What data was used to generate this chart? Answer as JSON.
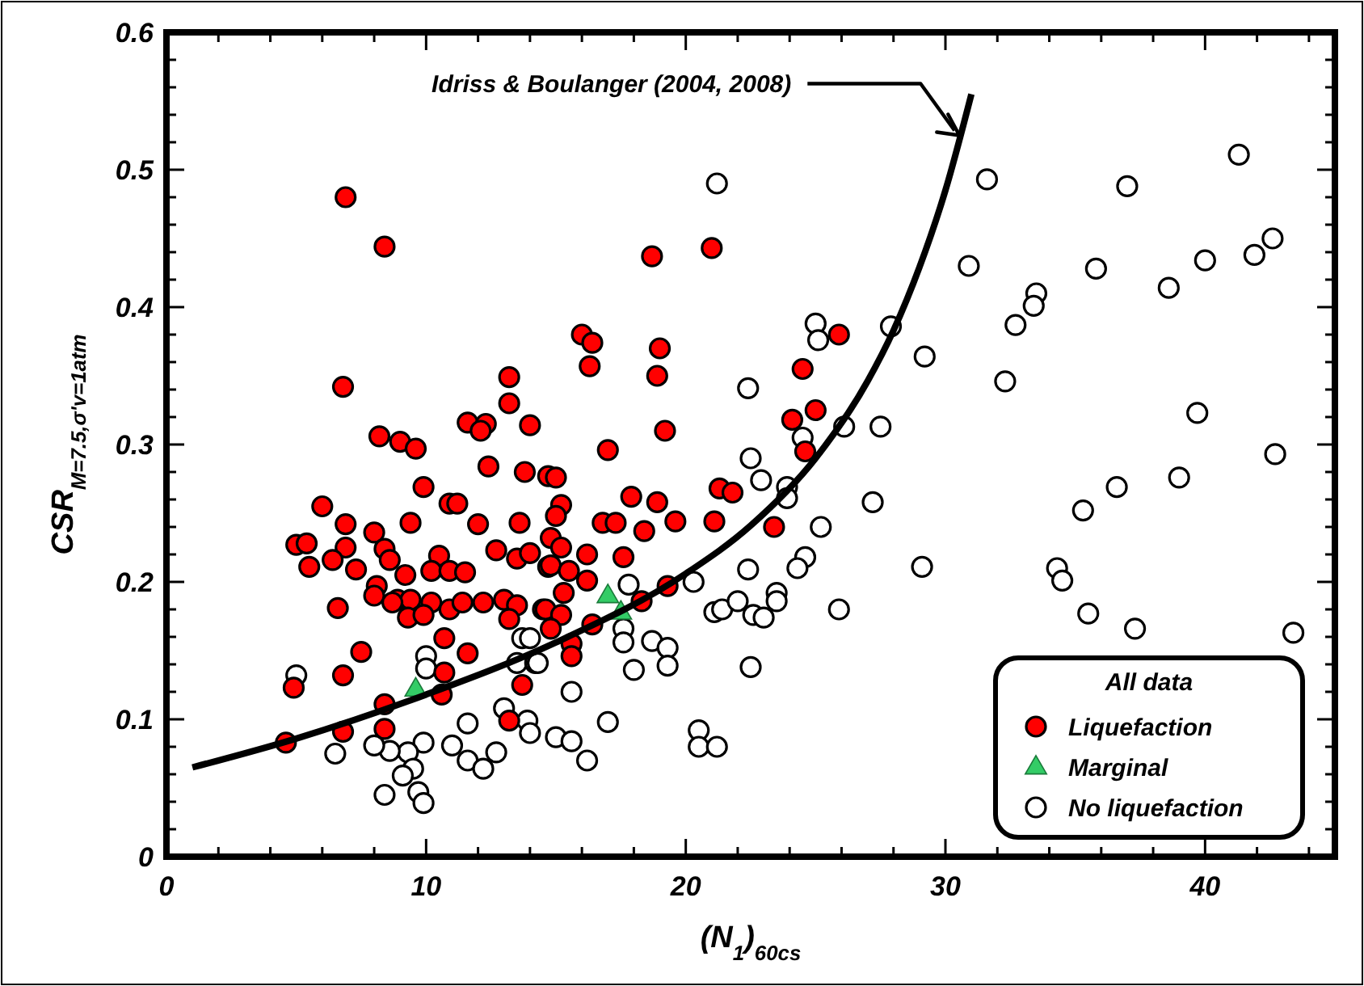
{
  "chart_data": {
    "type": "scatter",
    "xlabel": "(N$_{1}$)$_{60cs}$",
    "ylabel": "CSR$_{M=7.5,σ'v=1atm}$",
    "xlim": [
      0,
      45
    ],
    "ylim": [
      0,
      0.6
    ],
    "xticks": [
      0,
      {
        "value": 2,
        "label": null
      },
      {
        "value": 4,
        "label": null
      },
      {
        "value": 6,
        "label": null
      },
      {
        "value": 8,
        "label": null
      },
      10,
      {
        "value": 12,
        "label": null
      },
      {
        "value": 14,
        "label": null
      },
      {
        "value": 16,
        "label": null
      },
      {
        "value": 18,
        "label": null
      },
      20,
      {
        "value": 22,
        "label": null
      },
      {
        "value": 24,
        "label": null
      },
      {
        "value": 26,
        "label": null
      },
      {
        "value": 28,
        "label": null
      },
      30,
      {
        "value": 32,
        "label": null
      },
      {
        "value": 34,
        "label": null
      },
      {
        "value": 36,
        "label": null
      },
      {
        "value": 38,
        "label": null
      },
      40,
      {
        "value": 42,
        "label": null
      },
      {
        "value": 44,
        "label": null
      }
    ],
    "yticks": [
      0,
      {
        "value": 0.02,
        "label": null
      },
      {
        "value": 0.04,
        "label": null
      },
      {
        "value": 0.06,
        "label": null
      },
      {
        "value": 0.08,
        "label": null
      },
      0.1,
      {
        "value": 0.12,
        "label": null
      },
      {
        "value": 0.14,
        "label": null
      },
      {
        "value": 0.16,
        "label": null
      },
      {
        "value": 0.18,
        "label": null
      },
      0.2,
      {
        "value": 0.22,
        "label": null
      },
      {
        "value": 0.24,
        "label": null
      },
      {
        "value": 0.26,
        "label": null
      },
      {
        "value": 0.28,
        "label": null
      },
      0.3,
      {
        "value": 0.32,
        "label": null
      },
      {
        "value": 0.34,
        "label": null
      },
      {
        "value": 0.36,
        "label": null
      },
      {
        "value": 0.38,
        "label": null
      },
      0.4,
      {
        "value": 0.42,
        "label": null
      },
      {
        "value": 0.44,
        "label": null
      },
      {
        "value": 0.46,
        "label": null
      },
      {
        "value": 0.48,
        "label": null
      },
      0.5,
      {
        "value": 0.52,
        "label": null
      },
      {
        "value": 0.54,
        "label": null
      },
      {
        "value": 0.56,
        "label": null
      },
      {
        "value": 0.58,
        "label": null
      },
      0.6
    ],
    "grid": false,
    "legend": "bottom right",
    "legend_title": "All data",
    "annotations": [
      {
        "text": "Idriss & Boulanger (2004, 2008)",
        "x": 30.6,
        "y": 0.525
      }
    ],
    "series": [
      {
        "name": "Liquefaction",
        "color": "#ff0000",
        "marker": "circle",
        "x": [
          6.9,
          8.4,
          6.8,
          8.2,
          9.0,
          9.6,
          13.2,
          13.2,
          11.6,
          12.3,
          12.1,
          14.0,
          12.4,
          13.8,
          14.7,
          9.9,
          6.0,
          10.9,
          11.2,
          6.9,
          9.4,
          12.0,
          13.6,
          5.0,
          5.4,
          6.9,
          8.0,
          8.4,
          8.6,
          10.5,
          12.7,
          13.5,
          14.0,
          5.5,
          6.4,
          7.3,
          9.2,
          10.2,
          10.9,
          11.5,
          14.7,
          8.1,
          8.0,
          8.9,
          9.4,
          8.7,
          10.2,
          9.3,
          9.9,
          10.9,
          11.4,
          12.2,
          13.0,
          13.5,
          13.2,
          14.5,
          6.6,
          10.7,
          7.5,
          11.6,
          10.7,
          6.8,
          4.9,
          8.4,
          10.6,
          13.7,
          13.2,
          6.8,
          8.4,
          4.6,
          21.0,
          18.7,
          16.0,
          16.4,
          16.3,
          19.0,
          18.9,
          25.9,
          24.5,
          24.1,
          25.0,
          24.6,
          19.2,
          17.0,
          15.0,
          15.2,
          17.9,
          18.9,
          21.3,
          21.8,
          15.0,
          16.8,
          17.3,
          18.4,
          19.6,
          21.1,
          23.4,
          14.8,
          15.2,
          16.2,
          17.6,
          14.8,
          15.5,
          16.2,
          15.3,
          14.6,
          15.2,
          14.8,
          16.4,
          18.3,
          19.3,
          15.6,
          15.6
        ],
        "values": [
          0.48,
          0.444,
          0.342,
          0.306,
          0.302,
          0.297,
          0.349,
          0.33,
          0.316,
          0.315,
          0.31,
          0.314,
          0.284,
          0.28,
          0.277,
          0.269,
          0.255,
          0.257,
          0.257,
          0.242,
          0.243,
          0.242,
          0.243,
          0.227,
          0.228,
          0.225,
          0.236,
          0.224,
          0.216,
          0.219,
          0.223,
          0.217,
          0.221,
          0.211,
          0.216,
          0.209,
          0.205,
          0.208,
          0.208,
          0.207,
          0.211,
          0.197,
          0.19,
          0.187,
          0.187,
          0.185,
          0.185,
          0.174,
          0.176,
          0.18,
          0.185,
          0.185,
          0.187,
          0.183,
          0.173,
          0.18,
          0.181,
          0.159,
          0.149,
          0.148,
          0.134,
          0.132,
          0.123,
          0.111,
          0.118,
          0.125,
          0.099,
          0.091,
          0.093,
          0.083,
          0.443,
          0.437,
          0.38,
          0.374,
          0.357,
          0.37,
          0.35,
          0.38,
          0.355,
          0.318,
          0.325,
          0.295,
          0.31,
          0.296,
          0.276,
          0.256,
          0.262,
          0.258,
          0.268,
          0.265,
          0.248,
          0.243,
          0.243,
          0.237,
          0.244,
          0.244,
          0.24,
          0.232,
          0.225,
          0.22,
          0.218,
          0.212,
          0.208,
          0.201,
          0.192,
          0.18,
          0.176,
          0.166,
          0.169,
          0.186,
          0.197,
          0.155,
          0.146
        ]
      },
      {
        "name": "Marginal",
        "color": "#33cc66",
        "marker": "triangle",
        "x": [
          9.6,
          17.0,
          17.5
        ],
        "values": [
          0.122,
          0.19,
          0.178
        ]
      },
      {
        "name": "No liquefaction",
        "color": "#ffffff",
        "marker": "circle",
        "x": [
          5.0,
          10.0,
          10.0,
          13.7,
          14.0,
          13.5,
          14.2,
          13.0,
          13.9,
          14.0,
          11.6,
          9.9,
          9.3,
          8.6,
          8.0,
          11.0,
          6.5,
          12.7,
          11.6,
          12.2,
          9.5,
          9.1,
          9.7,
          9.9,
          8.4,
          21.2,
          25.0,
          25.1,
          22.4,
          27.9,
          29.2,
          24.5,
          26.1,
          27.5,
          22.5,
          22.9,
          23.9,
          23.9,
          27.2,
          25.2,
          24.6,
          24.3,
          29.1,
          22.4,
          20.3,
          17.8,
          21.1,
          21.4,
          22.0,
          22.6,
          23.0,
          23.5,
          23.5,
          25.9,
          17.6,
          17.6,
          18.7,
          19.3,
          19.3,
          18.0,
          14.3,
          22.5,
          15.6,
          17.0,
          15.0,
          15.6,
          16.2,
          20.5,
          20.5,
          21.2,
          31.6,
          37.0,
          41.3,
          30.9,
          35.8,
          33.5,
          33.4,
          32.7,
          38.6,
          40.0,
          41.9,
          42.6,
          32.3,
          39.7,
          42.7,
          39.0,
          36.6,
          35.3,
          34.3,
          34.5,
          35.5,
          37.3,
          43.4
        ],
        "values": [
          0.132,
          0.146,
          0.137,
          0.159,
          0.159,
          0.141,
          0.141,
          0.108,
          0.099,
          0.09,
          0.097,
          0.083,
          0.076,
          0.077,
          0.081,
          0.081,
          0.075,
          0.076,
          0.07,
          0.064,
          0.064,
          0.059,
          0.047,
          0.039,
          0.045,
          0.49,
          0.388,
          0.376,
          0.341,
          0.386,
          0.364,
          0.305,
          0.313,
          0.313,
          0.29,
          0.274,
          0.269,
          0.261,
          0.258,
          0.24,
          0.218,
          0.21,
          0.211,
          0.209,
          0.2,
          0.198,
          0.178,
          0.18,
          0.186,
          0.176,
          0.174,
          0.192,
          0.186,
          0.18,
          0.166,
          0.156,
          0.157,
          0.152,
          0.139,
          0.136,
          0.141,
          0.138,
          0.12,
          0.098,
          0.087,
          0.084,
          0.07,
          0.092,
          0.08,
          0.08,
          0.493,
          0.488,
          0.511,
          0.43,
          0.428,
          0.41,
          0.401,
          0.387,
          0.414,
          0.434,
          0.438,
          0.45,
          0.346,
          0.323,
          0.293,
          0.276,
          0.269,
          0.252,
          0.21,
          0.201,
          0.177,
          0.166,
          0.163
        ]
      },
      {
        "type": "line",
        "color": "#000000",
        "marker": "none",
        "line_style": "solid",
        "x": [
          1,
          5,
          10,
          15,
          20,
          22.5,
          25,
          27,
          28,
          29,
          30,
          31
        ],
        "values": [
          0.065,
          0.086,
          0.118,
          0.156,
          0.206,
          0.241,
          0.29,
          0.346,
          0.383,
          0.429,
          0.485,
          0.555
        ]
      }
    ]
  }
}
